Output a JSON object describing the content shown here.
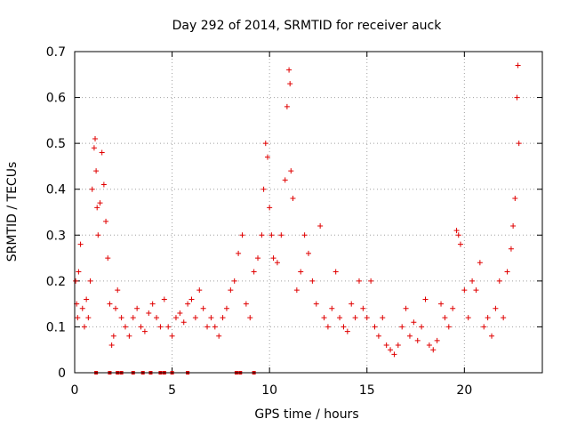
{
  "chart_data": {
    "type": "scatter",
    "title": "Day 292 of 2014, SRMTID for receiver auck",
    "xlabel": "GPS time / hours",
    "ylabel": "SRMTID / TECUs",
    "xlim": [
      0,
      24
    ],
    "ylim": [
      0,
      0.7
    ],
    "xticks": [
      0,
      5,
      10,
      15,
      20
    ],
    "xtick_labels": [
      "0",
      "5",
      "10",
      "15",
      "20"
    ],
    "yticks": [
      0,
      0.1,
      0.2,
      0.3,
      0.4,
      0.5,
      0.6,
      0.7
    ],
    "ytick_labels": [
      "0",
      "0.1",
      "0.2",
      "0.3",
      "0.4",
      "0.5",
      "0.6",
      "0.7"
    ],
    "grid": true,
    "marker": "plus",
    "color": "#e00000",
    "series": [
      {
        "name": "SRMTID",
        "x": [
          0.05,
          0.1,
          0.15,
          0.2,
          0.3,
          0.4,
          0.5,
          0.6,
          0.7,
          0.8,
          0.9,
          1.0,
          1.05,
          1.1,
          1.15,
          1.2,
          1.3,
          1.4,
          1.5,
          1.6,
          1.7,
          1.8,
          1.9,
          2.0,
          2.1,
          2.2,
          2.4,
          2.6,
          2.8,
          3.0,
          3.2,
          3.4,
          3.6,
          3.8,
          4.0,
          4.2,
          4.4,
          4.6,
          4.8,
          5.0,
          5.2,
          5.4,
          5.6,
          5.8,
          6.0,
          6.2,
          6.4,
          6.6,
          6.8,
          7.0,
          7.2,
          7.4,
          7.6,
          7.8,
          8.0,
          8.2,
          8.4,
          8.6,
          8.8,
          9.0,
          9.2,
          9.4,
          9.6,
          9.7,
          9.8,
          9.9,
          10.0,
          10.1,
          10.2,
          10.4,
          10.6,
          10.8,
          10.9,
          11.0,
          11.05,
          11.1,
          11.2,
          11.4,
          11.6,
          11.8,
          12.0,
          12.2,
          12.4,
          12.6,
          12.8,
          13.0,
          13.2,
          13.4,
          13.6,
          13.8,
          14.0,
          14.2,
          14.4,
          14.6,
          14.8,
          15.0,
          15.2,
          15.4,
          15.6,
          15.8,
          16.0,
          16.2,
          16.4,
          16.6,
          16.8,
          17.0,
          17.2,
          17.4,
          17.6,
          17.8,
          18.0,
          18.2,
          18.4,
          18.6,
          18.8,
          19.0,
          19.2,
          19.4,
          19.6,
          19.7,
          19.8,
          20.0,
          20.2,
          20.4,
          20.6,
          20.8,
          21.0,
          21.2,
          21.4,
          21.6,
          21.8,
          22.0,
          22.2,
          22.4,
          22.5,
          22.6,
          22.7,
          22.75,
          22.8
        ],
        "y": [
          0.2,
          0.15,
          0.12,
          0.22,
          0.28,
          0.14,
          0.1,
          0.16,
          0.12,
          0.2,
          0.4,
          0.49,
          0.51,
          0.44,
          0.36,
          0.3,
          0.37,
          0.48,
          0.41,
          0.33,
          0.25,
          0.15,
          0.06,
          0.08,
          0.14,
          0.18,
          0.12,
          0.1,
          0.08,
          0.12,
          0.14,
          0.1,
          0.09,
          0.13,
          0.15,
          0.12,
          0.1,
          0.16,
          0.1,
          0.08,
          0.12,
          0.13,
          0.11,
          0.15,
          0.16,
          0.12,
          0.18,
          0.14,
          0.1,
          0.12,
          0.1,
          0.08,
          0.12,
          0.14,
          0.18,
          0.2,
          0.26,
          0.3,
          0.15,
          0.12,
          0.22,
          0.25,
          0.3,
          0.4,
          0.5,
          0.47,
          0.36,
          0.3,
          0.25,
          0.24,
          0.3,
          0.42,
          0.58,
          0.66,
          0.63,
          0.44,
          0.38,
          0.18,
          0.22,
          0.3,
          0.26,
          0.2,
          0.15,
          0.32,
          0.12,
          0.1,
          0.14,
          0.22,
          0.12,
          0.1,
          0.09,
          0.15,
          0.12,
          0.2,
          0.14,
          0.12,
          0.2,
          0.1,
          0.08,
          0.12,
          0.06,
          0.05,
          0.04,
          0.06,
          0.1,
          0.14,
          0.08,
          0.11,
          0.07,
          0.1,
          0.16,
          0.06,
          0.05,
          0.07,
          0.15,
          0.12,
          0.1,
          0.14,
          0.31,
          0.3,
          0.28,
          0.18,
          0.12,
          0.2,
          0.18,
          0.24,
          0.1,
          0.12,
          0.08,
          0.14,
          0.2,
          0.12,
          0.22,
          0.27,
          0.32,
          0.38,
          0.6,
          0.67,
          0.5
        ]
      }
    ],
    "zero_markers_x": [
      1.1,
      1.8,
      2.2,
      2.4,
      3.0,
      3.5,
      3.9,
      4.4,
      4.6,
      5.0,
      5.8,
      8.3,
      8.5,
      9.2
    ]
  }
}
